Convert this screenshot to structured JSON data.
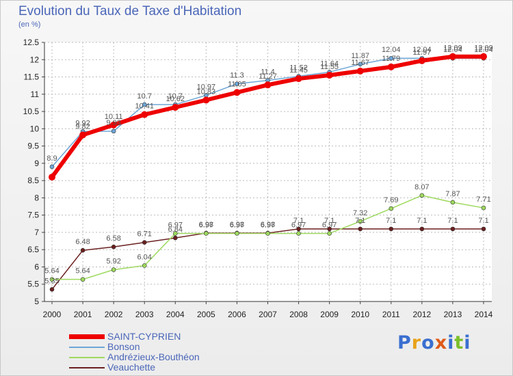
{
  "header": {
    "title": "Evolution du Taux de Taxe d'Habitation",
    "unit": "(en %)"
  },
  "brand": {
    "text": "Proxiti"
  },
  "colors": {
    "saint_cyprien": "#ee0000",
    "bonson": "#6ea6d6",
    "andrezieux": "#9ed95e",
    "veauchette": "#6b1f1f",
    "title": "#4a66b8",
    "grid": "#bbbbbb",
    "label": "#555555"
  },
  "chart_data": {
    "type": "line",
    "title": "Evolution du Taux de Taxe d'Habitation",
    "ylabel": "(en %)",
    "xlabel": "",
    "x": [
      "2000",
      "2001",
      "2002",
      "2003",
      "2004",
      "2005",
      "2006",
      "2007",
      "2008",
      "2009",
      "2010",
      "2011",
      "2012",
      "2013",
      "2014"
    ],
    "ylim": [
      5,
      12.5
    ],
    "yticks": [
      "5",
      "5.5",
      "6",
      "6.5",
      "7",
      "7.5",
      "8",
      "8.5",
      "9",
      "9.5",
      "10",
      "10.5",
      "11",
      "11.5",
      "12",
      "12.5"
    ],
    "grid": true,
    "legend": "bottom-left",
    "series": [
      {
        "name": "SAINT-CYPRIEN",
        "key": "saint_cyprien",
        "width": 6,
        "marker": 5,
        "values": [
          8.6,
          9.82,
          10.11,
          10.41,
          10.62,
          10.83,
          11.05,
          11.27,
          11.45,
          11.55,
          11.67,
          11.79,
          11.97,
          12.09,
          12.09
        ],
        "labels": [
          null,
          "9.82",
          "10.11",
          "10.41",
          "10.62",
          "10.83",
          "11.05",
          "11.27",
          "11.45",
          "11.55",
          "11.67",
          "11.79",
          "11.97",
          "12.09",
          "12.09"
        ]
      },
      {
        "name": "Bonson",
        "key": "bonson",
        "width": 1.5,
        "marker": 3,
        "values": [
          8.9,
          9.92,
          9.93,
          10.7,
          10.7,
          10.97,
          11.3,
          11.4,
          11.52,
          11.64,
          11.87,
          12.04,
          12.04,
          12.04,
          12.04
        ],
        "labels": [
          "8.9",
          "9.92",
          "9.93",
          "10.7",
          "10.7",
          "10.97",
          "11.3",
          "11.4",
          "11.52",
          "11.64",
          "11.87",
          "12.04",
          "12.04",
          "12.04",
          "12.04"
        ]
      },
      {
        "name": "Andrézieux-Bouthéon",
        "key": "andrezieux",
        "width": 1.5,
        "marker": 3,
        "values": [
          5.64,
          5.64,
          5.92,
          6.04,
          6.97,
          6.97,
          6.97,
          6.97,
          6.97,
          6.97,
          7.32,
          7.69,
          8.07,
          7.87,
          7.71
        ],
        "labels": [
          "5.64",
          "5.64",
          "5.92",
          "6.04",
          "6.97",
          "6.97",
          "6.97",
          "6.97",
          "6.97",
          "6.97",
          "7.32",
          "7.69",
          "8.07",
          "7.87",
          "7.71"
        ]
      },
      {
        "name": "Veauchette",
        "key": "veauchette",
        "width": 1.5,
        "marker": 3,
        "values": [
          5.35,
          6.48,
          6.58,
          6.71,
          6.84,
          6.98,
          6.98,
          6.98,
          7.1,
          7.1,
          7.1,
          7.1,
          7.1,
          7.1,
          7.1
        ],
        "labels": [
          "5.35",
          "6.48",
          "6.58",
          "6.71",
          "6.84",
          "6.98",
          "6.98",
          "6.98",
          "7.1",
          "7.1",
          "7.1",
          "7.1",
          "7.1",
          "7.1",
          "7.1"
        ]
      }
    ]
  }
}
